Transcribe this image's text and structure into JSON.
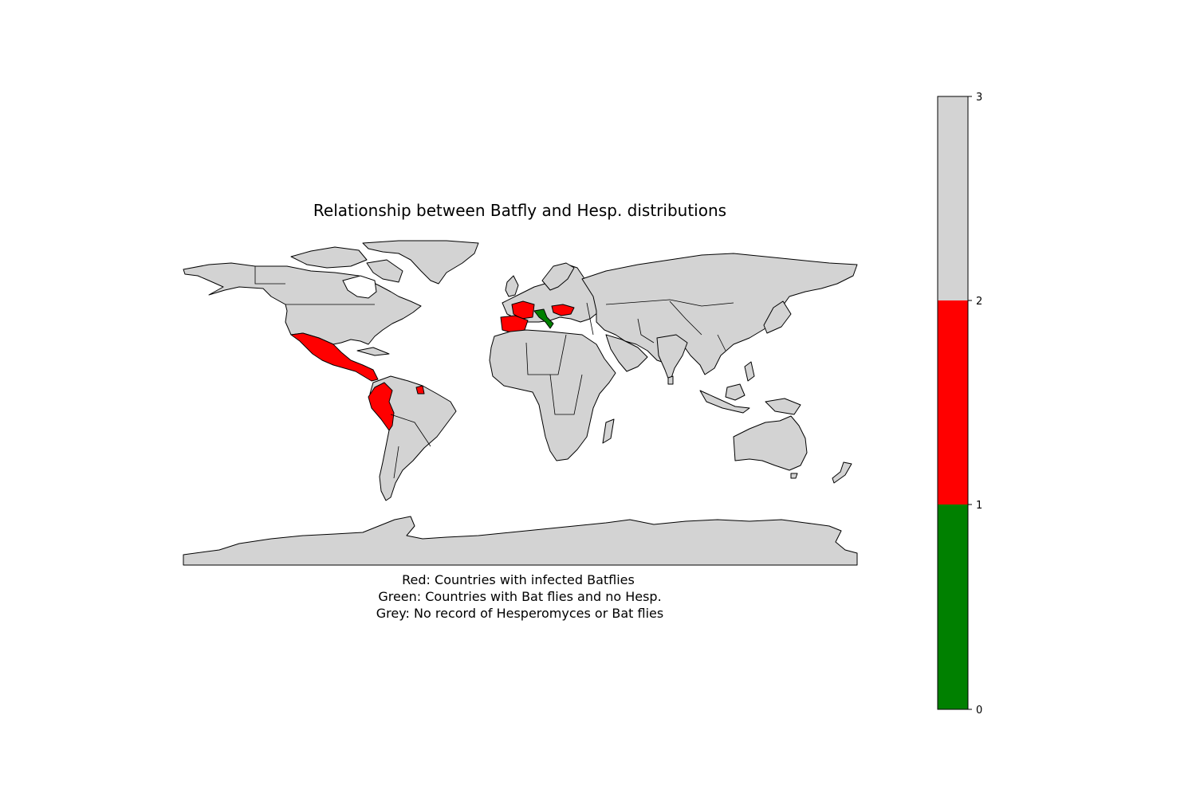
{
  "map": {
    "title": "Relationship between Batfly and Hesp. distributions",
    "caption_lines": [
      "Red: Countries with infected Batflies",
      "Green: Countries with Bat flies and no Hesp.",
      "Grey: No record of Hesperomyces or Bat flies"
    ],
    "categories": [
      {
        "value_range": [
          0,
          1
        ],
        "color": "#008000",
        "meaning": "Countries with Bat flies and no Hesp."
      },
      {
        "value_range": [
          1,
          2
        ],
        "color": "#ff0000",
        "meaning": "Countries with infected Batflies"
      },
      {
        "value_range": [
          2,
          3
        ],
        "color": "#d3d3d3",
        "meaning": "No record of Hesperomyces or Bat flies"
      }
    ],
    "country_colors": {
      "grey": "#d3d3d3",
      "red": "#ff0000",
      "green": "#008000"
    }
  },
  "colorbar": {
    "ticks": [
      "0",
      "1",
      "2",
      "3"
    ],
    "range": [
      0,
      3
    ]
  }
}
